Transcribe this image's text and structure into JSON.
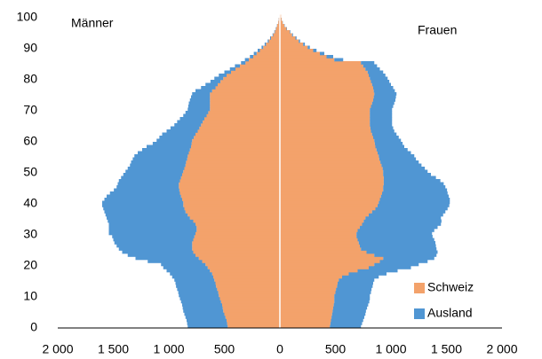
{
  "chart_data": {
    "type": "pyramid",
    "left_label": "Männer",
    "right_label": "Frauen",
    "categories": [
      0,
      1,
      2,
      3,
      4,
      5,
      6,
      7,
      8,
      9,
      10,
      11,
      12,
      13,
      14,
      15,
      16,
      17,
      18,
      19,
      20,
      21,
      22,
      23,
      24,
      25,
      26,
      27,
      28,
      29,
      30,
      31,
      32,
      33,
      34,
      35,
      36,
      37,
      38,
      39,
      40,
      41,
      42,
      43,
      44,
      45,
      46,
      47,
      48,
      49,
      50,
      51,
      52,
      53,
      54,
      55,
      56,
      57,
      58,
      59,
      60,
      61,
      62,
      63,
      64,
      65,
      66,
      67,
      68,
      69,
      70,
      71,
      72,
      73,
      74,
      75,
      76,
      77,
      78,
      79,
      80,
      81,
      82,
      83,
      84,
      85,
      86,
      87,
      88,
      89,
      90,
      91,
      92,
      93,
      94,
      95,
      96,
      97,
      98,
      99,
      100
    ],
    "series": [
      {
        "name": "Schweiz",
        "color": "#f3a26b",
        "men": [
          -470,
          -475,
          -480,
          -490,
          -500,
          -510,
          -515,
          -520,
          -530,
          -540,
          -550,
          -555,
          -565,
          -575,
          -580,
          -590,
          -600,
          -610,
          -630,
          -650,
          -670,
          -700,
          -730,
          -760,
          -780,
          -790,
          -790,
          -790,
          -780,
          -770,
          -760,
          -750,
          -750,
          -760,
          -780,
          -810,
          -830,
          -850,
          -860,
          -870,
          -870,
          -880,
          -890,
          -900,
          -905,
          -910,
          -910,
          -900,
          -890,
          -880,
          -870,
          -860,
          -850,
          -845,
          -835,
          -830,
          -820,
          -810,
          -800,
          -795,
          -790,
          -775,
          -760,
          -740,
          -725,
          -710,
          -695,
          -680,
          -660,
          -645,
          -630,
          -630,
          -630,
          -630,
          -630,
          -630,
          -610,
          -580,
          -560,
          -535,
          -510,
          -480,
          -440,
          -400,
          -360,
          -310,
          -280,
          -240,
          -210,
          -180,
          -150,
          -125,
          -100,
          -80,
          -60,
          -45,
          -35,
          -25,
          -15,
          -10,
          -5
        ],
        "women": [
          450,
          455,
          460,
          465,
          470,
          475,
          480,
          485,
          490,
          490,
          490,
          500,
          505,
          515,
          520,
          530,
          560,
          620,
          700,
          800,
          850,
          900,
          930,
          850,
          780,
          730,
          720,
          710,
          700,
          690,
          690,
          700,
          720,
          740,
          755,
          770,
          800,
          830,
          860,
          880,
          890,
          900,
          910,
          920,
          930,
          930,
          935,
          935,
          935,
          930,
          930,
          925,
          915,
          905,
          895,
          890,
          880,
          870,
          860,
          855,
          850,
          840,
          830,
          820,
          815,
          810,
          810,
          810,
          810,
          810,
          810,
          820,
          830,
          840,
          845,
          850,
          845,
          840,
          830,
          820,
          810,
          800,
          790,
          770,
          750,
          730,
          490,
          420,
          360,
          300,
          250,
          210,
          170,
          140,
          110,
          90,
          60,
          40,
          25,
          15,
          10
        ]
      },
      {
        "name": "Ausland",
        "color": "#5096d3",
        "men": [
          -360,
          -360,
          -360,
          -360,
          -360,
          -360,
          -360,
          -360,
          -360,
          -360,
          -360,
          -360,
          -360,
          -360,
          -360,
          -360,
          -370,
          -380,
          -390,
          -400,
          -400,
          -490,
          -570,
          -610,
          -640,
          -660,
          -680,
          -700,
          -720,
          -740,
          -780,
          -790,
          -790,
          -780,
          -770,
          -750,
          -740,
          -730,
          -730,
          -730,
          -730,
          -700,
          -670,
          -630,
          -590,
          -560,
          -550,
          -550,
          -540,
          -530,
          -520,
          -510,
          -500,
          -495,
          -490,
          -480,
          -460,
          -430,
          -400,
          -350,
          -320,
          -310,
          -300,
          -280,
          -260,
          -240,
          -230,
          -220,
          -210,
          -205,
          -200,
          -195,
          -190,
          -180,
          -170,
          -160,
          -150,
          -130,
          -110,
          -90,
          -80,
          -70,
          -60,
          -50,
          -45,
          -40,
          -35,
          -30,
          -25,
          -20,
          -15,
          -12,
          -10,
          -8,
          -6,
          -5,
          -3,
          -2,
          -1,
          -1,
          0
        ],
        "women": [
          280,
          285,
          290,
          295,
          300,
          300,
          305,
          310,
          315,
          320,
          320,
          320,
          320,
          320,
          320,
          320,
          330,
          340,
          360,
          380,
          400,
          430,
          460,
          560,
          640,
          680,
          685,
          690,
          690,
          685,
          680,
          690,
          700,
          710,
          700,
          680,
          670,
          660,
          650,
          645,
          640,
          630,
          610,
          590,
          575,
          560,
          540,
          510,
          470,
          430,
          400,
          380,
          360,
          345,
          330,
          320,
          300,
          280,
          260,
          250,
          240,
          230,
          220,
          210,
          205,
          200,
          200,
          200,
          200,
          200,
          200,
          200,
          200,
          200,
          200,
          200,
          190,
          180,
          170,
          165,
          160,
          150,
          140,
          130,
          125,
          120,
          80,
          60,
          40,
          30,
          20,
          15,
          12,
          10,
          8,
          5,
          4,
          3,
          2,
          1,
          0
        ]
      }
    ],
    "xlim": [
      -2000,
      2000
    ],
    "xticks": [
      {
        "value": -2000,
        "label": "2 000"
      },
      {
        "value": -1500,
        "label": "1 500"
      },
      {
        "value": -1000,
        "label": "1 000"
      },
      {
        "value": -500,
        "label": "500"
      },
      0,
      500,
      {
        "value": 1000,
        "label": "1 000"
      },
      {
        "value": 1500,
        "label": "1 500"
      },
      {
        "value": 2000,
        "label": "2 000"
      }
    ],
    "ylim": [
      0,
      100
    ],
    "yticks": [
      0,
      10,
      20,
      30,
      40,
      50,
      60,
      70,
      80,
      90,
      100
    ],
    "legend": "bottom-right"
  }
}
